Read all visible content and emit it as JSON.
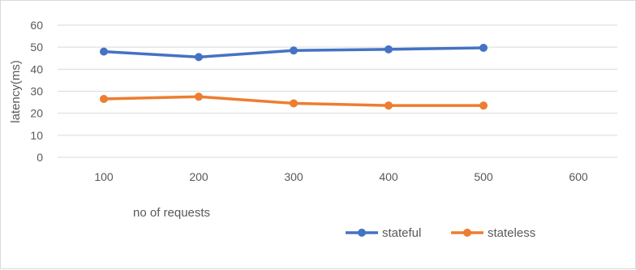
{
  "chart_data": {
    "type": "line",
    "title": "",
    "xlabel": "no of requests",
    "ylabel": "latency(ms)",
    "categories": [
      "100",
      "200",
      "300",
      "400",
      "500",
      "600"
    ],
    "x": [
      100,
      200,
      300,
      400,
      500,
      600
    ],
    "yticks": [
      "0",
      "10",
      "20",
      "30",
      "40",
      "50",
      "60"
    ],
    "ylim": [
      0,
      60
    ],
    "grid": "horizontal",
    "legend_position": "bottom-right",
    "series": [
      {
        "name": "stateful",
        "color": "#4472C4",
        "x": [
          100,
          200,
          300,
          400,
          500
        ],
        "values": [
          48,
          45.5,
          48.5,
          49,
          49.7
        ]
      },
      {
        "name": "stateless",
        "color": "#ED7D31",
        "x": [
          100,
          200,
          300,
          400,
          500
        ],
        "values": [
          26.5,
          27.5,
          24.5,
          23.5,
          23.5
        ]
      }
    ]
  }
}
